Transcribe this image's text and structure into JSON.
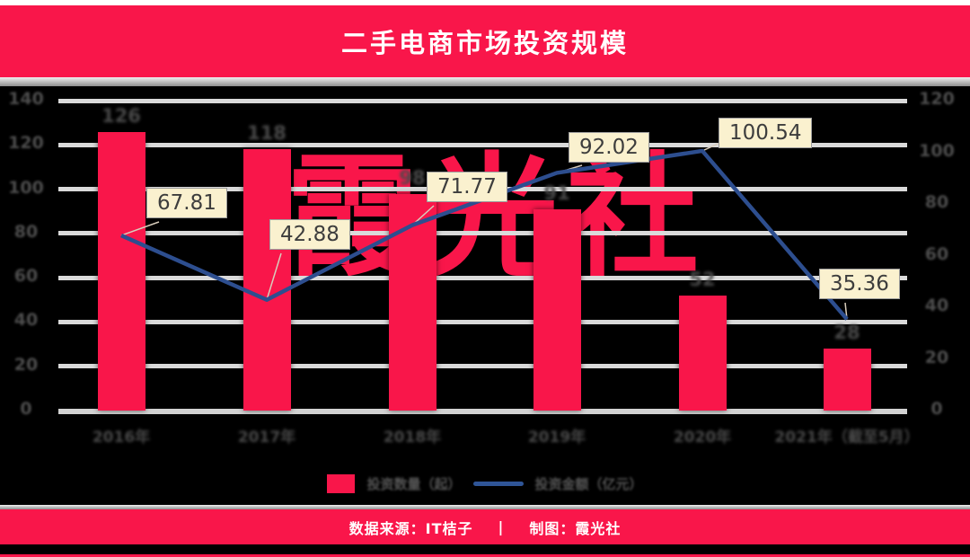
{
  "header": {
    "title": "二手电商市场投资规模"
  },
  "watermark": {
    "text": "霞光社"
  },
  "legend": {
    "bar_label": "投资数量（起）",
    "line_label": "投资金额（亿元）"
  },
  "footer": {
    "source": "数据来源：IT桔子",
    "divider": "|",
    "credit": "制图：霞光社"
  },
  "colors": {
    "brand_red": "#f9164a",
    "line_navy": "#2d4e8f",
    "legend_line_blue": "#2f5597",
    "callout_bg": "#faf1cf",
    "gridline": "#dadada",
    "muted_label": "#4d4d4d",
    "background": "#000000"
  },
  "chart_data": {
    "type": "bar",
    "title": "二手电商市场投资规模",
    "categories": [
      "2016年",
      "2017年",
      "2018年",
      "2019年",
      "2020年",
      "2021年（截至5月）"
    ],
    "series": [
      {
        "name": "投资数量（起）",
        "type": "bar",
        "axis": "left",
        "values": [
          126,
          118,
          98,
          91,
          52,
          28
        ]
      },
      {
        "name": "投资金额（亿元）",
        "type": "line",
        "axis": "right",
        "values": [
          67.81,
          42.88,
          71.77,
          92.02,
          100.54,
          35.36
        ],
        "point_labels": [
          "67.81",
          "42.88",
          "71.77",
          "92.02",
          "100.54",
          "35.36"
        ]
      }
    ],
    "left_axis": {
      "min": 0,
      "max": 140,
      "step": 20,
      "tick_labels": [
        "0",
        "20",
        "40",
        "60",
        "80",
        "100",
        "120",
        "140"
      ]
    },
    "right_axis": {
      "min": 0,
      "max": 120,
      "step": 20,
      "tick_labels": [
        "0",
        "20",
        "40",
        "60",
        "80",
        "100",
        "120"
      ]
    },
    "grid": true,
    "legend_position": "bottom",
    "note": "axis ticks, categories and bar value labels are rendered near-illegible dark gray on black in source"
  }
}
